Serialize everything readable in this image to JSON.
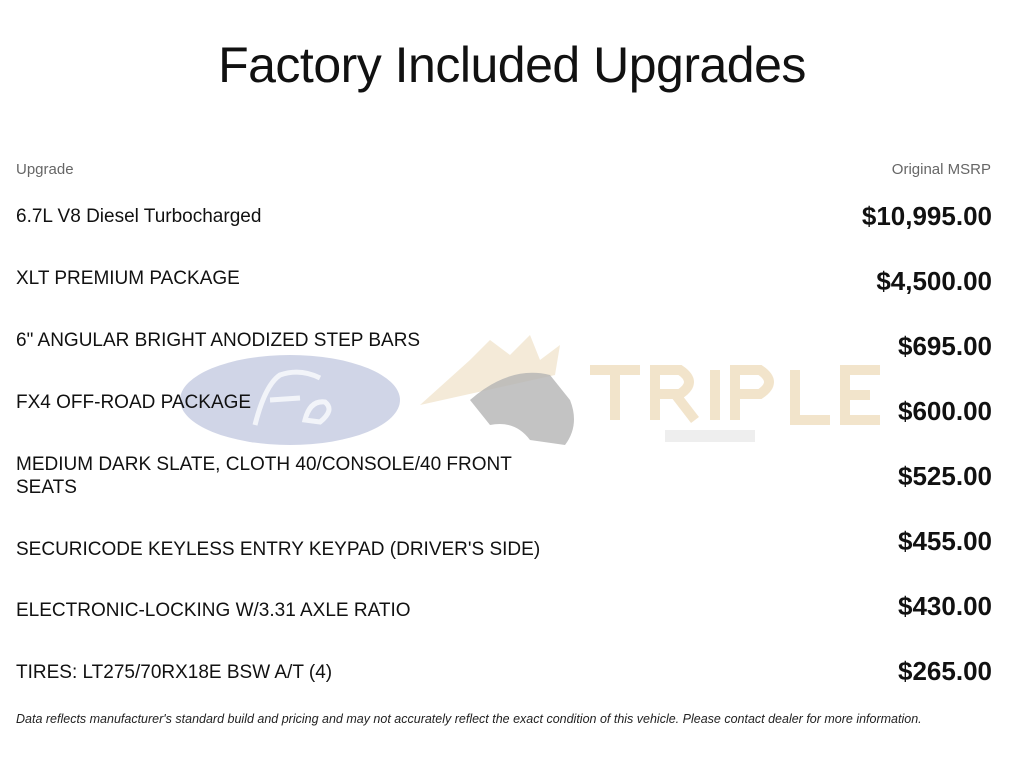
{
  "title": "Factory Included Upgrades",
  "columns": {
    "upgrade": "Upgrade",
    "msrp": "Original MSRP"
  },
  "rows": [
    {
      "name": "6.7L V8 Diesel Turbocharged",
      "price": "$10,995.00"
    },
    {
      "name": "XLT PREMIUM PACKAGE",
      "price": "$4,500.00"
    },
    {
      "name": "6\" ANGULAR BRIGHT ANODIZED STEP BARS",
      "price": "$695.00"
    },
    {
      "name": "FX4 OFF-ROAD PACKAGE",
      "price": "$600.00"
    },
    {
      "name": "MEDIUM DARK SLATE, CLOTH 40/CONSOLE/40 FRONT SEATS",
      "price": "$525.00"
    },
    {
      "name": "SECURICODE KEYLESS ENTRY KEYPAD (DRIVER'S SIDE)",
      "price": "$455.00"
    },
    {
      "name": "ELECTRONIC-LOCKING W/3.31 AXLE RATIO",
      "price": "$430.00"
    },
    {
      "name": "TIRES: LT275/70RX18E BSW A/T (4)",
      "price": "$265.00"
    }
  ],
  "watermark": {
    "ford": "Ford",
    "dealer_line1": "TRIPLE",
    "dealer_line2": "CROWN"
  },
  "footnote": "Data reflects manufacturer's standard build and pricing and may not accurately reflect the exact condition of this vehicle. Please contact dealer for more information."
}
